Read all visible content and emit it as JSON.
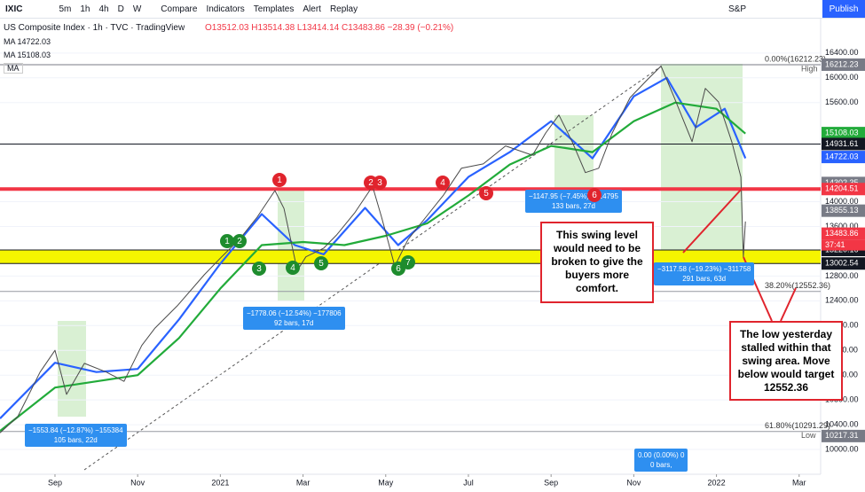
{
  "toolbar": {
    "symbol": "IXIC",
    "intervals": [
      "5m",
      "1h",
      "4h",
      "D",
      "W"
    ],
    "buttons": [
      "Compare",
      "Indicators",
      "Templates",
      "Alert",
      "Replay"
    ],
    "exchange": "S&P",
    "publish": "Publish"
  },
  "legend": {
    "title": "US Composite Index · 1h · TVC · TradingView",
    "ohlc": "O13512.03 H13514.38 L13414.14 C13483.86 −28.39 (−0.21%)",
    "tag": "MA"
  },
  "chart": {
    "type": "line",
    "xlim": [
      -1.33,
      18.52
    ],
    "xticks": [
      {
        "value": 0,
        "label": "Sep"
      },
      {
        "value": 2,
        "label": "Nov"
      },
      {
        "value": 4,
        "label": "2021"
      },
      {
        "value": 6,
        "label": "Mar"
      },
      {
        "value": 8,
        "label": "May"
      },
      {
        "value": 10,
        "label": "Jul"
      },
      {
        "value": 12,
        "label": "Sep"
      },
      {
        "value": 14,
        "label": "Nov"
      },
      {
        "value": 16,
        "label": "2022"
      },
      {
        "value": 18,
        "label": "Mar"
      }
    ],
    "ylim": [
      9600,
      16970
    ],
    "yticks": [
      {
        "value": 16400,
        "label": "16400.00"
      },
      {
        "value": 16000,
        "label": "16000.00"
      },
      {
        "value": 15600,
        "label": "15600.00"
      },
      {
        "value": 14000,
        "label": "14000.00"
      },
      {
        "value": 13600,
        "label": "13600.00"
      },
      {
        "value": 12800,
        "label": "12800.00"
      },
      {
        "value": 12400,
        "label": "12400.00"
      },
      {
        "value": 12000,
        "label": "12000.00"
      },
      {
        "value": 11600,
        "label": "11600.00"
      },
      {
        "value": 11200,
        "label": "11200.00"
      },
      {
        "value": 10800,
        "label": "10800.00"
      },
      {
        "value": 10400,
        "label": "10400.00"
      },
      {
        "value": 10000,
        "label": "10000.00"
      }
    ],
    "price": {
      "color": "#4a4a4a",
      "x": [
        -1.33,
        -0.9,
        -0.36,
        0,
        0.28,
        0.71,
        1.24,
        1.67,
        2.1,
        2.42,
        2.96,
        3.61,
        4.03,
        4.46,
        4.89,
        5.32,
        5.54,
        5.86,
        6.07,
        6.5,
        6.82,
        7.25,
        7.68,
        7.9,
        8.22,
        8.54,
        8.97,
        9.4,
        9.83,
        10.36,
        10.9,
        11.55,
        11.87,
        12.19,
        12.51,
        12.83,
        13.15,
        13.48,
        13.91,
        14.33,
        14.66,
        14.98,
        15.41,
        15.73,
        16.05,
        16.37,
        16.59,
        16.65,
        16.7
      ],
      "values": [
        10270,
        10530,
        11250,
        11600,
        10890,
        11390,
        11250,
        11100,
        11680,
        11960,
        12320,
        12820,
        13110,
        13390,
        13750,
        14180,
        13890,
        12890,
        13110,
        13250,
        13470,
        13820,
        14250,
        13750,
        12960,
        13390,
        13750,
        14110,
        14540,
        14610,
        14900,
        14750,
        15110,
        15400,
        14970,
        14470,
        14540,
        15110,
        15680,
        15970,
        16190,
        15680,
        14970,
        15830,
        15610,
        14970,
        14400,
        13110,
        13680
      ]
    },
    "ma": [
      {
        "name": "MA 14722.03",
        "color": "#2962ff",
        "x": [
          -1.33,
          0,
          1,
          2,
          3,
          4,
          5,
          5.8,
          6.5,
          7.5,
          8.3,
          9,
          10,
          11,
          12,
          13,
          14,
          14.8,
          15.5,
          16.2,
          16.7
        ],
        "values": [
          10500,
          11400,
          11250,
          11300,
          12100,
          13000,
          13800,
          13300,
          13150,
          13900,
          13300,
          13700,
          14400,
          14800,
          15300,
          14700,
          15700,
          16000,
          15200,
          15500,
          14700
        ]
      },
      {
        "name": "MA 15108.03",
        "color": "#22ab3a",
        "x": [
          -1.33,
          0,
          1,
          2,
          3,
          4,
          5,
          6,
          7,
          8,
          9,
          10,
          11,
          12,
          13,
          14,
          15,
          16,
          16.7
        ],
        "values": [
          10300,
          11000,
          11100,
          11200,
          11800,
          12600,
          13300,
          13350,
          13300,
          13450,
          13650,
          14100,
          14600,
          14900,
          14800,
          15300,
          15600,
          15500,
          15100
        ]
      }
    ],
    "levels": [
      {
        "value": 16212.23,
        "label": "16212.23",
        "color": "#787b86",
        "line": true
      },
      {
        "value": 15108.03,
        "label": "15108.03",
        "color": "#22ab3a"
      },
      {
        "value": 14931.61,
        "label": "14931.61",
        "color": "#131722",
        "line": true
      },
      {
        "value": 14722.03,
        "label": "14722.03",
        "color": "#2962ff"
      },
      {
        "value": 14302.35,
        "label": "14302.35",
        "color": "#787b86"
      },
      {
        "value": 14204.51,
        "label": "14204.51",
        "color": "#f23645",
        "line": true,
        "width": 4
      },
      {
        "value": 13855.13,
        "label": "13855.13",
        "color": "#787b86"
      },
      {
        "value": 13483.86,
        "label": "13483.86",
        "color": "#f23645"
      },
      {
        "value": 13220.16,
        "label": "13220.16",
        "color": "#131722",
        "line": true
      },
      {
        "value": 13002.54,
        "label": "13002.54",
        "color": "#131722",
        "line": true
      },
      {
        "value": 10217.31,
        "label": "10217.31",
        "color": "#787b86"
      }
    ],
    "countdown": "37:41",
    "band": {
      "from": 13002.54,
      "to": 13220.16,
      "color": "#f5f500"
    },
    "fib": [
      {
        "value": 16212.23,
        "label": "0.00%(16212.23)",
        "tag": "High"
      },
      {
        "value": 12552.36,
        "label": "38.20%(12552.36)"
      },
      {
        "value": 10291.29,
        "label": "61.80%(10291.29)",
        "tag": "Low"
      }
    ]
  },
  "markers": {
    "red": [
      1,
      2,
      3,
      4,
      5,
      6
    ],
    "green": [
      1,
      2,
      3,
      4,
      5,
      6,
      7
    ]
  },
  "measures": [
    {
      "lines": [
        "−1553.84 (−12.87%) −155384",
        "105 bars, 22d"
      ]
    },
    {
      "lines": [
        "−1778.06 (−12.54%) −177806",
        "92 bars, 17d"
      ]
    },
    {
      "lines": [
        "−1147.95 (−7.45%) −114795",
        "133 bars, 27d"
      ]
    },
    {
      "lines": [
        "−3117.58 (−19.23%) −311758",
        "291 bars, 63d"
      ]
    },
    {
      "lines": [
        "0.00 (0.00%) 0",
        "0 bars,"
      ]
    }
  ],
  "callouts": [
    "This swing level would need to be broken to give the buyers more comfort.",
    "The low yesterday stalled within that swing area.  Move below would target 12552.36"
  ]
}
